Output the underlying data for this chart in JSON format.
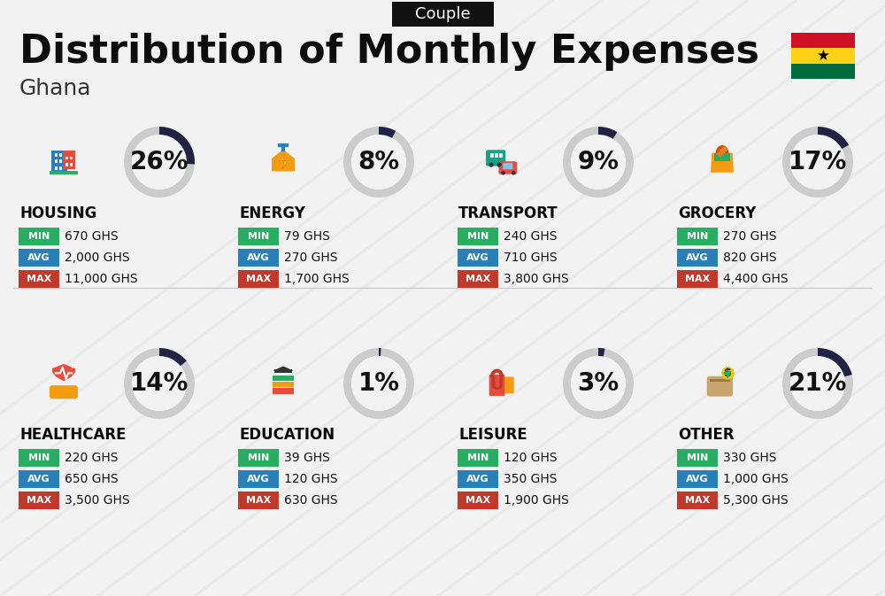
{
  "title": "Distribution of Monthly Expenses",
  "subtitle": "Ghana",
  "badge": "Couple",
  "bg_color": "#f2f2f2",
  "stripe_color": "#e8e8e8",
  "categories": [
    {
      "name": "HOUSING",
      "pct": 26,
      "min_val": "670 GHS",
      "avg_val": "2,000 GHS",
      "max_val": "11,000 GHS",
      "row": 0,
      "col": 0
    },
    {
      "name": "ENERGY",
      "pct": 8,
      "min_val": "79 GHS",
      "avg_val": "270 GHS",
      "max_val": "1,700 GHS",
      "row": 0,
      "col": 1
    },
    {
      "name": "TRANSPORT",
      "pct": 9,
      "min_val": "240 GHS",
      "avg_val": "710 GHS",
      "max_val": "3,800 GHS",
      "row": 0,
      "col": 2
    },
    {
      "name": "GROCERY",
      "pct": 17,
      "min_val": "270 GHS",
      "avg_val": "820 GHS",
      "max_val": "4,400 GHS",
      "row": 0,
      "col": 3
    },
    {
      "name": "HEALTHCARE",
      "pct": 14,
      "min_val": "220 GHS",
      "avg_val": "650 GHS",
      "max_val": "3,500 GHS",
      "row": 1,
      "col": 0
    },
    {
      "name": "EDUCATION",
      "pct": 1,
      "min_val": "39 GHS",
      "avg_val": "120 GHS",
      "max_val": "630 GHS",
      "row": 1,
      "col": 1
    },
    {
      "name": "LEISURE",
      "pct": 3,
      "min_val": "120 GHS",
      "avg_val": "350 GHS",
      "max_val": "1,900 GHS",
      "row": 1,
      "col": 2
    },
    {
      "name": "OTHER",
      "pct": 21,
      "min_val": "330 GHS",
      "avg_val": "1,000 GHS",
      "max_val": "5,300 GHS",
      "row": 1,
      "col": 3
    }
  ],
  "min_color": "#27ae60",
  "avg_color": "#2980b9",
  "max_color": "#c0392b",
  "donut_dark": "#222244",
  "donut_light": "#cccccc",
  "flag_red": "#CE1126",
  "flag_gold": "#FCD116",
  "flag_green": "#006B3F",
  "title_fs": 32,
  "sub_fs": 18,
  "badge_fs": 13,
  "cat_fs": 12,
  "val_fs": 10,
  "pct_fs": 20,
  "lbl_fs": 8
}
